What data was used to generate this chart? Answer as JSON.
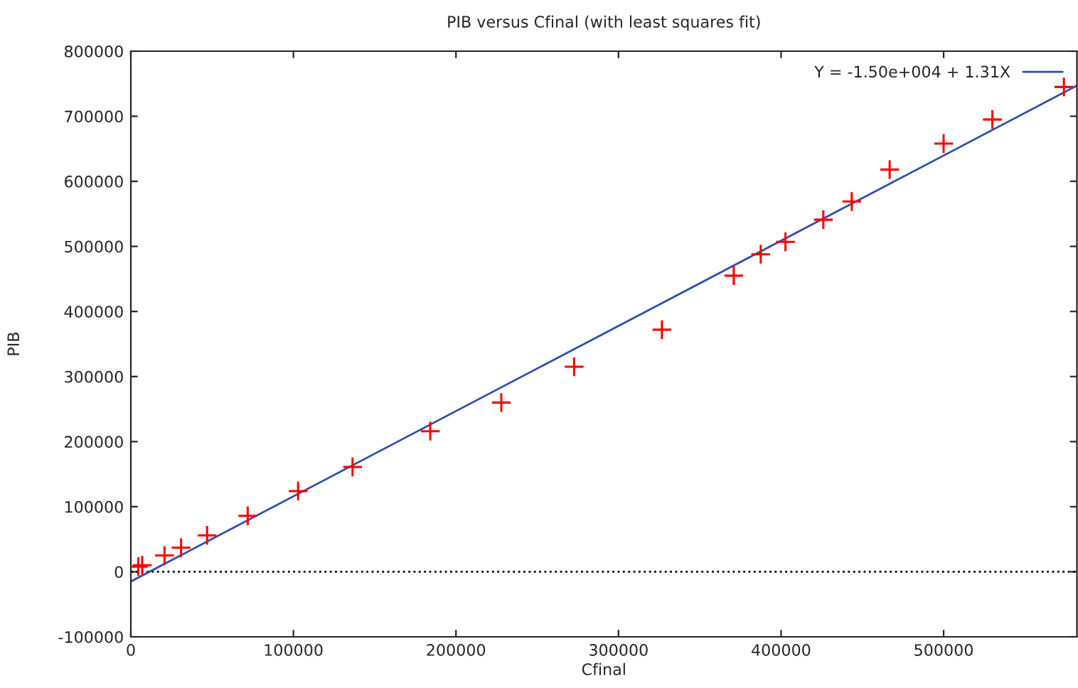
{
  "chart_data": {
    "type": "scatter",
    "title": "PIB versus Cfinal (with least squares fit)",
    "xlabel": "Cfinal",
    "ylabel": "PIB",
    "xlim": [
      0,
      582000
    ],
    "ylim": [
      -100000,
      800000
    ],
    "xticks": [
      0,
      100000,
      200000,
      300000,
      400000,
      500000
    ],
    "yticks": [
      -100000,
      0,
      100000,
      200000,
      300000,
      400000,
      500000,
      600000,
      700000,
      800000
    ],
    "grid": false,
    "legend": "top right",
    "ref_lines": [
      {
        "axis": "y",
        "value": 0,
        "color": "#000000",
        "line_style": "dotted"
      }
    ],
    "series": [
      {
        "color": "#ff0000",
        "marker": "cross",
        "x": [
          4600,
          7000,
          20700,
          30900,
          46900,
          71900,
          102900,
          136400,
          184200,
          227900,
          272700,
          326700,
          370900,
          387500,
          402700,
          426000,
          443500,
          466800,
          500000,
          530000,
          574000
        ],
        "values": [
          8000,
          10000,
          25000,
          37000,
          56000,
          86000,
          124000,
          161000,
          216000,
          260000,
          315000,
          372000,
          455000,
          488000,
          507000,
          541000,
          569000,
          618000,
          658000,
          695000,
          745000
        ]
      },
      {
        "type": "line",
        "name": "Y = -1.50e+004 + 1.31X",
        "color": "#2f4faa",
        "line_style": "solid",
        "x": [
          0,
          582000
        ],
        "values": [
          -15000,
          747000
        ]
      }
    ]
  }
}
